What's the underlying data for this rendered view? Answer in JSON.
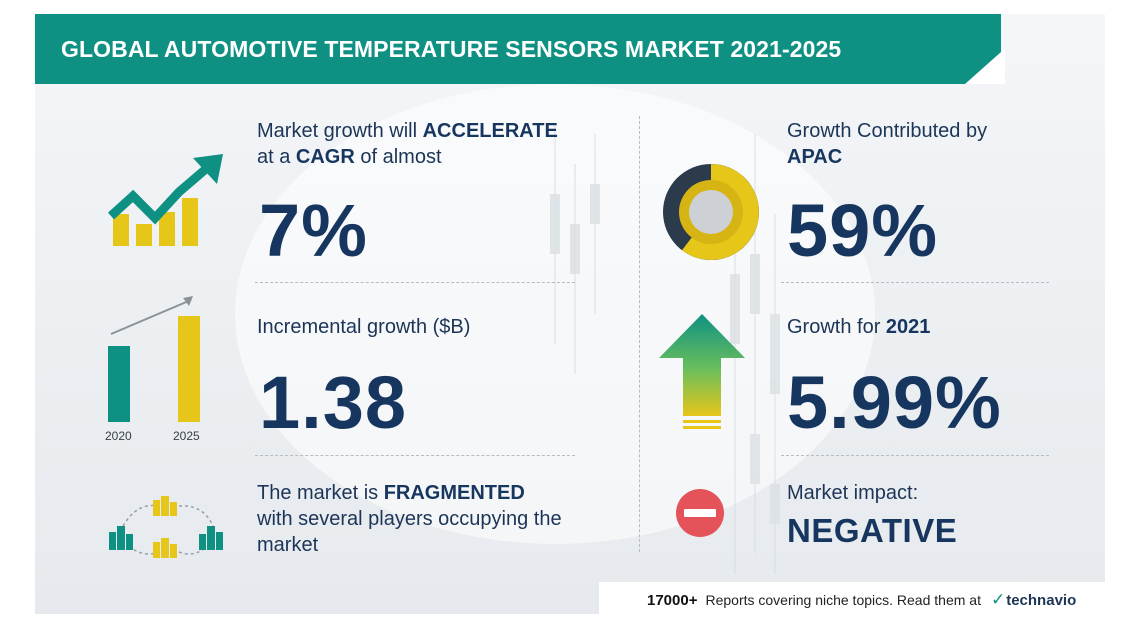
{
  "header": {
    "title": "GLOBAL AUTOMOTIVE TEMPERATURE SENSORS MARKET 2021-2025"
  },
  "cagr": {
    "line1_prefix": "Market growth will ",
    "line1_bold": "ACCELERATE",
    "line2_prefix": "at a ",
    "line2_bold": "CAGR",
    "line2_suffix": " of almost",
    "value": "7%"
  },
  "incremental": {
    "label": "Incremental growth ($B)",
    "value": "1.38",
    "chart_years": [
      "2020",
      "2025"
    ]
  },
  "structure": {
    "line1_prefix": "The market is ",
    "line1_bold": "FRAGMENTED",
    "line2": "with several players occupying the",
    "line3": "market"
  },
  "region": {
    "line1": "Growth Contributed by",
    "line2_bold": "APAC",
    "value": "59%"
  },
  "yoy": {
    "label_prefix": "Growth for ",
    "label_bold": "2021",
    "value": "5.99%"
  },
  "impact": {
    "label": "Market impact:",
    "value": "NEGATIVE"
  },
  "footer": {
    "count": "17000+",
    "text": "Reports covering niche topics. Read them at",
    "brand": "technavio"
  },
  "colors": {
    "teal": "#0e9183",
    "yellow": "#e6c619",
    "navy": "#17365f",
    "red": "#e4525a"
  },
  "icons": {
    "cagr": "trend-arrow-bars-icon",
    "incremental": "bar-chart-icon",
    "structure": "buildings-network-icon",
    "region": "donut-chart-icon",
    "yoy": "up-arrow-icon",
    "impact": "no-entry-icon"
  }
}
